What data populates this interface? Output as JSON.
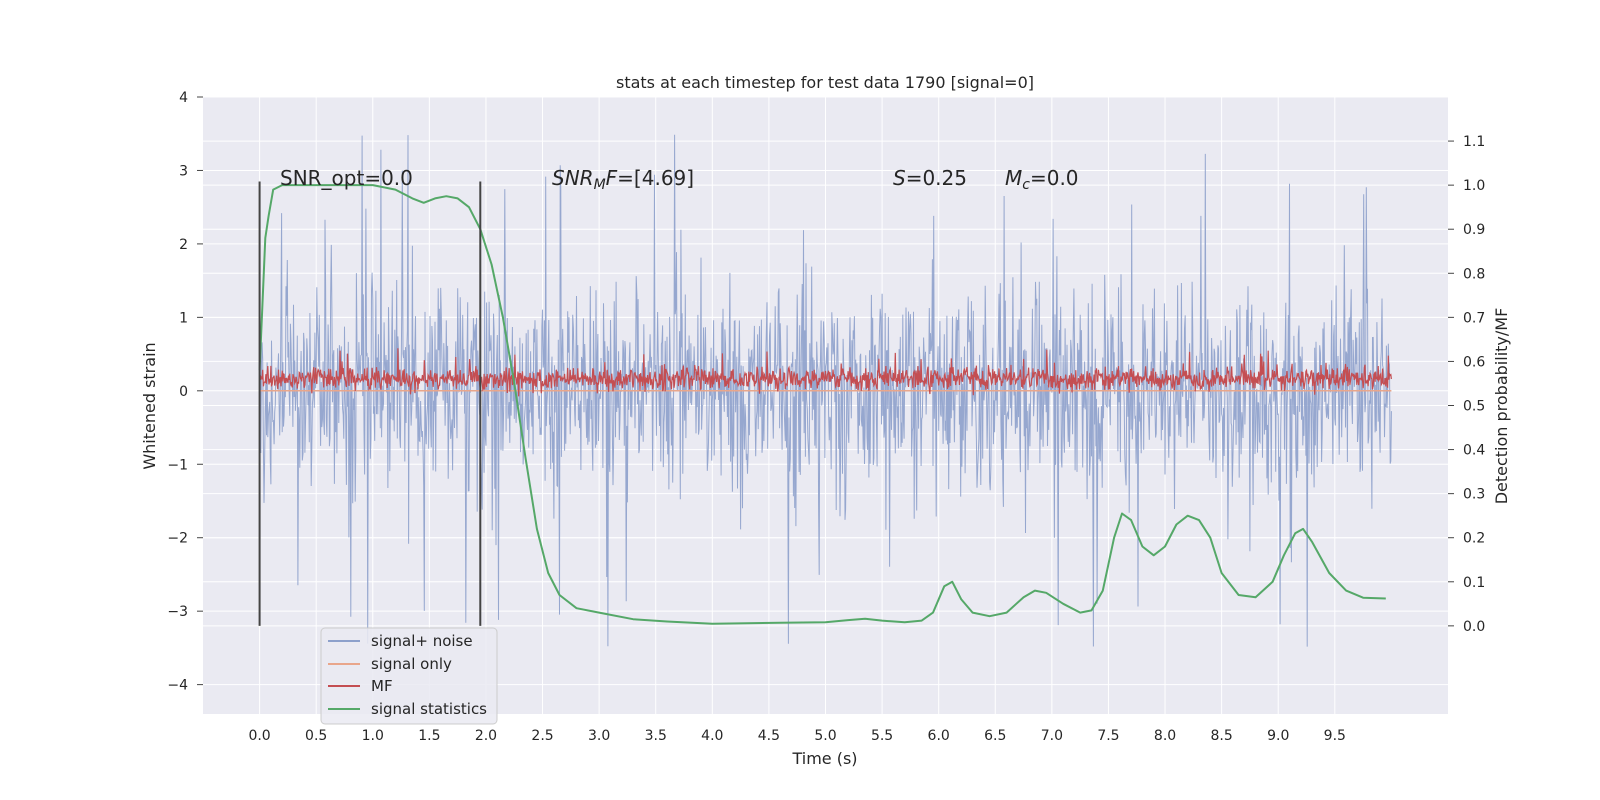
{
  "chart_data": {
    "type": "line",
    "title": "stats at each timestep for test data 1790 [signal=0]",
    "xlabel": "Time (s)",
    "ylabel": "Whitened strain",
    "ylabel_right": "Detection probability/MF",
    "xlim": [
      -0.5,
      10.5
    ],
    "ylim": [
      -4.4,
      4.0
    ],
    "ylim_right": [
      -0.2,
      1.2
    ],
    "x_ticks": [
      "0.0",
      "0.5",
      "1.0",
      "1.5",
      "2.0",
      "2.5",
      "3.0",
      "3.5",
      "4.0",
      "4.5",
      "5.0",
      "5.5",
      "6.0",
      "6.5",
      "7.0",
      "7.5",
      "8.0",
      "8.5",
      "9.0",
      "9.5"
    ],
    "y_ticks": [
      "4",
      "3",
      "2",
      "1",
      "0",
      "−1",
      "−2",
      "−3",
      "−4"
    ],
    "y_ticks_right": [
      "1.1",
      "1.0",
      "0.9",
      "0.8",
      "0.7",
      "0.6",
      "0.5",
      "0.4",
      "0.3",
      "0.2",
      "0.1",
      "0.0"
    ],
    "annotations": {
      "snr_opt": "SNR_opt=0.0",
      "snr_mf_italic": "SNR",
      "snr_mf_sub": "M",
      "snr_mf_italic2": "F",
      "snr_mf_value": "=[4.69]",
      "s_label": "S",
      "s_value": "=0.25",
      "mc_label": "M",
      "mc_sub": "c",
      "mc_value": "=0.0"
    },
    "grid": true,
    "legend_position": "lower-left",
    "colors": {
      "background": "#EAEAF2",
      "noise": "#8DA0CB",
      "signal_only": "#E9A68B",
      "mf": "#C44E52",
      "statistics": "#55A868",
      "vlines": "#444444"
    },
    "series": [
      {
        "name": "signal+ noise",
        "type": "noise_trace",
        "x_range": [
          0.0,
          10.0
        ],
        "typical_band": [
          -1.6,
          1.6
        ],
        "peaks_max": 3.65,
        "peaks_min": -3.95,
        "axis": "left"
      },
      {
        "name": "signal only",
        "type": "line",
        "x": [
          0.0,
          10.0
        ],
        "y": [
          0.0,
          0.0
        ],
        "axis": "left"
      },
      {
        "name": "MF",
        "type": "noise_trace",
        "x_range": [
          0.0,
          10.0
        ],
        "typical_band": [
          0.52,
          0.6
        ],
        "peaks_max": 0.67,
        "peaks_min": 0.49,
        "axis": "right"
      },
      {
        "name": "signal statistics",
        "type": "line",
        "axis": "right",
        "x": [
          0.0,
          0.05,
          0.08,
          0.12,
          0.2,
          0.4,
          0.7,
          1.0,
          1.2,
          1.35,
          1.45,
          1.55,
          1.65,
          1.75,
          1.85,
          1.95,
          2.05,
          2.15,
          2.25,
          2.35,
          2.45,
          2.55,
          2.65,
          2.8,
          3.0,
          3.3,
          3.6,
          4.0,
          4.3,
          4.6,
          5.0,
          5.2,
          5.35,
          5.5,
          5.7,
          5.85,
          5.95,
          6.05,
          6.12,
          6.2,
          6.3,
          6.45,
          6.6,
          6.75,
          6.85,
          6.95,
          7.1,
          7.25,
          7.35,
          7.45,
          7.55,
          7.62,
          7.7,
          7.8,
          7.9,
          8.0,
          8.1,
          8.2,
          8.3,
          8.4,
          8.5,
          8.65,
          8.8,
          8.95,
          9.05,
          9.15,
          9.22,
          9.3,
          9.45,
          9.6,
          9.75,
          9.95
        ],
        "y": [
          0.58,
          0.88,
          0.93,
          0.99,
          1.0,
          1.0,
          1.0,
          1.0,
          0.99,
          0.97,
          0.96,
          0.97,
          0.975,
          0.97,
          0.95,
          0.9,
          0.82,
          0.7,
          0.55,
          0.38,
          0.22,
          0.12,
          0.07,
          0.04,
          0.03,
          0.015,
          0.01,
          0.005,
          0.006,
          0.007,
          0.008,
          0.013,
          0.016,
          0.012,
          0.008,
          0.012,
          0.03,
          0.09,
          0.1,
          0.06,
          0.03,
          0.022,
          0.03,
          0.065,
          0.08,
          0.075,
          0.05,
          0.03,
          0.035,
          0.08,
          0.2,
          0.255,
          0.24,
          0.18,
          0.16,
          0.18,
          0.23,
          0.25,
          0.24,
          0.2,
          0.12,
          0.07,
          0.065,
          0.1,
          0.16,
          0.21,
          0.22,
          0.19,
          0.12,
          0.08,
          0.064,
          0.062
        ]
      }
    ],
    "vlines": [
      0.0,
      1.95
    ]
  }
}
